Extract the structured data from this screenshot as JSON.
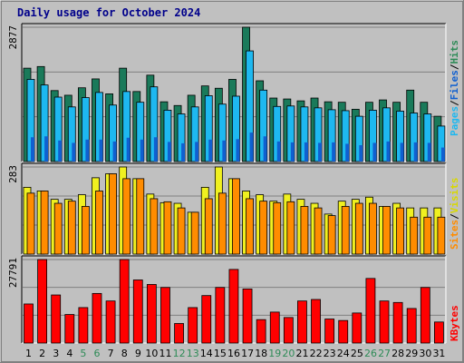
{
  "title": "Daily usage for October 2024",
  "colors": {
    "background": "#C0C0C0",
    "hits": "#1A7A5A",
    "files": "#1EB8F0",
    "pages": "#1060D0",
    "visits": "#F0F020",
    "sites": "#FF8C00",
    "kbytes": "#FF0000",
    "weekday": "#000000",
    "weekend": "#2E8B57"
  },
  "right_labels": {
    "top": [
      {
        "text": "Pages",
        "color": "#1EB8F0"
      },
      {
        "text": "/",
        "color": "#000000"
      },
      {
        "text": "Files",
        "color": "#1060D0"
      },
      {
        "text": "/",
        "color": "#000000"
      },
      {
        "text": "Hits",
        "color": "#2E8B57"
      }
    ],
    "middle": [
      {
        "text": "Sites",
        "color": "#FF8C00"
      },
      {
        "text": "/",
        "color": "#000000"
      },
      {
        "text": "Visits",
        "color": "#D8D800"
      }
    ],
    "bottom": [
      {
        "text": "KBytes",
        "color": "#FF0000"
      }
    ]
  },
  "chart_data": [
    {
      "type": "bar",
      "name": "hits-files-pages",
      "max_label": "2877",
      "ylim": [
        0,
        2877
      ],
      "categories": [
        "1",
        "2",
        "3",
        "4",
        "5",
        "6",
        "7",
        "8",
        "9",
        "10",
        "11",
        "12",
        "13",
        "14",
        "15",
        "16",
        "17",
        "18",
        "19",
        "20",
        "21",
        "22",
        "23",
        "24",
        "25",
        "26",
        "27",
        "28",
        "29",
        "30",
        "31"
      ],
      "weekend_days": [
        "5",
        "6",
        "12",
        "13",
        "19",
        "20",
        "26",
        "27"
      ],
      "series": [
        {
          "name": "Hits",
          "values": [
            2000,
            2035,
            1520,
            1420,
            1580,
            1770,
            1450,
            2000,
            1500,
            1850,
            1280,
            1200,
            1420,
            1620,
            1570,
            1760,
            2877,
            1730,
            1360,
            1340,
            1300,
            1360,
            1280,
            1270,
            1120,
            1270,
            1320,
            1270,
            1530,
            1270,
            970
          ]
        },
        {
          "name": "Files",
          "values": [
            1760,
            1640,
            1380,
            1170,
            1370,
            1480,
            1210,
            1500,
            1270,
            1600,
            1100,
            1020,
            1170,
            1410,
            1230,
            1400,
            2370,
            1530,
            1180,
            1190,
            1170,
            1150,
            1110,
            1090,
            970,
            1100,
            1150,
            1080,
            1040,
            1020,
            760
          ]
        },
        {
          "name": "Pages",
          "values": [
            520,
            540,
            450,
            400,
            470,
            470,
            430,
            510,
            470,
            520,
            420,
            390,
            420,
            470,
            450,
            480,
            620,
            540,
            430,
            410,
            410,
            400,
            410,
            380,
            350,
            400,
            430,
            400,
            410,
            400,
            300
          ]
        }
      ]
    },
    {
      "type": "bar",
      "name": "visits-sites",
      "max_label": "283",
      "ylim": [
        0,
        283
      ],
      "categories": [
        "1",
        "2",
        "3",
        "4",
        "5",
        "6",
        "7",
        "8",
        "9",
        "10",
        "11",
        "12",
        "13",
        "14",
        "15",
        "16",
        "17",
        "18",
        "19",
        "20",
        "21",
        "22",
        "23",
        "24",
        "25",
        "26",
        "27",
        "28",
        "29",
        "30",
        "31"
      ],
      "series": [
        {
          "name": "Visits",
          "values": [
            217,
            205,
            178,
            178,
            193,
            248,
            261,
            283,
            245,
            195,
            167,
            165,
            136,
            217,
            283,
            245,
            205,
            193,
            172,
            195,
            178,
            165,
            130,
            172,
            178,
            185,
            155,
            165,
            150,
            150,
            150
          ]
        },
        {
          "name": "Sites",
          "values": [
            198,
            205,
            165,
            172,
            155,
            205,
            261,
            245,
            245,
            180,
            170,
            150,
            136,
            180,
            198,
            245,
            180,
            172,
            167,
            170,
            155,
            150,
            125,
            155,
            165,
            165,
            155,
            150,
            120,
            120,
            120
          ]
        }
      ]
    },
    {
      "type": "bar",
      "name": "kbytes",
      "max_label": "27791",
      "ylim": [
        0,
        27791
      ],
      "categories": [
        "1",
        "2",
        "3",
        "4",
        "5",
        "6",
        "7",
        "8",
        "9",
        "10",
        "11",
        "12",
        "13",
        "14",
        "15",
        "16",
        "17",
        "18",
        "19",
        "20",
        "21",
        "22",
        "23",
        "24",
        "25",
        "26",
        "27",
        "28",
        "29",
        "30",
        "31"
      ],
      "series": [
        {
          "name": "KBytes",
          "values": [
            13000,
            27791,
            16000,
            9500,
            11800,
            16500,
            14000,
            27791,
            21000,
            19500,
            18500,
            6500,
            11800,
            15800,
            18500,
            24500,
            18000,
            7800,
            10300,
            8500,
            14000,
            14500,
            8000,
            7500,
            10000,
            21500,
            14000,
            13500,
            11500,
            18500,
            7000
          ]
        }
      ]
    }
  ]
}
